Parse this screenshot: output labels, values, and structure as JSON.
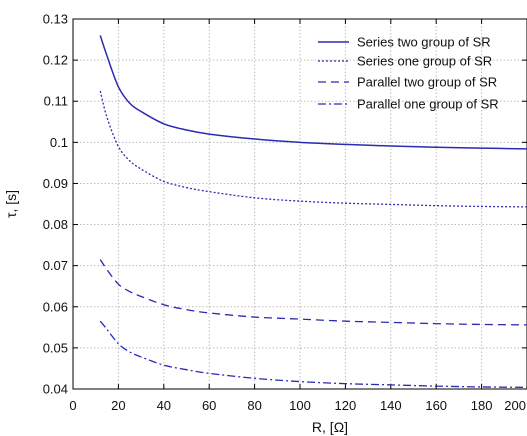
{
  "chart_data": {
    "type": "line",
    "xlabel": "R, [Ω]",
    "ylabel": "τ, [s]",
    "xlim": [
      0,
      200
    ],
    "ylim": [
      0.04,
      0.13
    ],
    "xticks": [
      0,
      20,
      40,
      60,
      80,
      100,
      120,
      140,
      160,
      180,
      200
    ],
    "xtick_labels": [
      "0",
      "20",
      "40",
      "60",
      "80",
      "100",
      "120",
      "140",
      "160",
      "180",
      "200"
    ],
    "yticks": [
      0.04,
      0.05,
      0.06,
      0.07,
      0.08,
      0.09,
      0.1,
      0.11,
      0.12,
      0.13
    ],
    "ytick_labels": [
      "0.04",
      "0.05",
      "0.06",
      "0.07",
      "0.08",
      "0.09",
      "0.1",
      "0.11",
      "0.12",
      "0.13"
    ],
    "grid": true,
    "legend_position": "top-right",
    "color": "#2b2bb3",
    "series": [
      {
        "name": "Series two group of SR",
        "dash": "solid",
        "x": [
          12,
          15,
          20,
          25,
          30,
          40,
          50,
          60,
          80,
          100,
          120,
          140,
          160,
          180,
          200
        ],
        "y": [
          0.126,
          0.121,
          0.1135,
          0.1095,
          0.1075,
          0.1045,
          0.103,
          0.102,
          0.1008,
          0.1,
          0.0995,
          0.0991,
          0.0988,
          0.0986,
          0.0984
        ]
      },
      {
        "name": "Series one group of SR",
        "dash": "dotted",
        "x": [
          12,
          15,
          20,
          25,
          30,
          40,
          50,
          60,
          80,
          100,
          120,
          140,
          160,
          180,
          200
        ],
        "y": [
          0.1125,
          0.106,
          0.099,
          0.0955,
          0.0935,
          0.0905,
          0.089,
          0.088,
          0.0865,
          0.0857,
          0.0852,
          0.0849,
          0.0846,
          0.0844,
          0.0843
        ]
      },
      {
        "name": "Parallel two group of SR",
        "dash": "dashed",
        "x": [
          12,
          15,
          20,
          25,
          30,
          40,
          50,
          60,
          80,
          100,
          120,
          140,
          160,
          180,
          200
        ],
        "y": [
          0.0715,
          0.069,
          0.0655,
          0.0637,
          0.0625,
          0.0605,
          0.0593,
          0.0585,
          0.0575,
          0.057,
          0.0565,
          0.0562,
          0.0559,
          0.0557,
          0.0556
        ]
      },
      {
        "name": "Parallel one group of SR",
        "dash": "dashdot",
        "x": [
          12,
          15,
          20,
          25,
          30,
          40,
          50,
          60,
          80,
          100,
          120,
          140,
          160,
          180,
          200
        ],
        "y": [
          0.0565,
          0.0545,
          0.051,
          0.049,
          0.0478,
          0.0458,
          0.0447,
          0.0438,
          0.0426,
          0.0418,
          0.0413,
          0.041,
          0.0407,
          0.0405,
          0.0404
        ]
      }
    ]
  }
}
